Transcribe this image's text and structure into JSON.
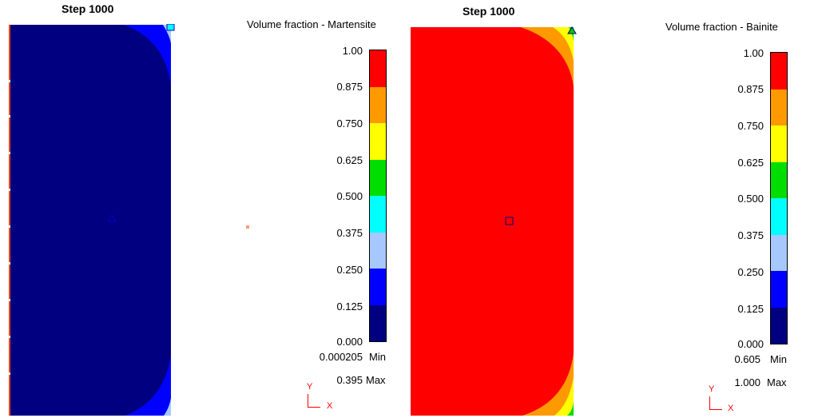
{
  "panels": [
    {
      "step_title": "Step 1000",
      "legend_title": "Volume fraction - Martensite",
      "ticks": [
        "1.00",
        "0.875",
        "0.750",
        "0.625",
        "0.500",
        "0.375",
        "0.250",
        "0.125",
        "0.000"
      ],
      "min_value": "0.000205",
      "min_label": "Min",
      "max_value": "0.395",
      "max_label": "Max",
      "axis_y": "Y",
      "axis_x": "X"
    },
    {
      "step_title": "Step 1000",
      "legend_title": "Volume fraction - Bainite",
      "ticks": [
        "1.00",
        "0.875",
        "0.750",
        "0.625",
        "0.500",
        "0.375",
        "0.250",
        "0.125",
        "0.000"
      ],
      "min_value": "0.605",
      "min_label": "Min",
      "max_value": "1.000",
      "max_label": "Max",
      "axis_y": "Y",
      "axis_x": "X"
    }
  ],
  "colors": {
    "band_1": "#ff0000",
    "band_2": "#ff9900",
    "band_3": "#ffff00",
    "band_4": "#00dd00",
    "band_5": "#00ffff",
    "band_6": "#a6c8ff",
    "band_7": "#0000ff",
    "band_8": "#000080",
    "axis": "#ff0000"
  }
}
